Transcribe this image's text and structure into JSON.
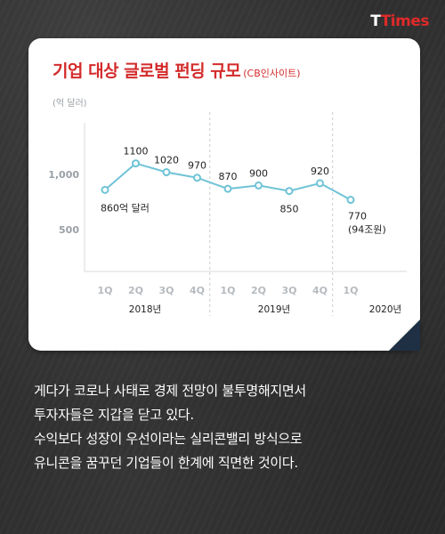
{
  "brand": {
    "logo_part1": "T",
    "logo_part2": "Times"
  },
  "card": {
    "title": "기업 대상 글로벌 펀딩 규모",
    "source": "(CB인사이트)",
    "unit": "(억 달러)"
  },
  "colors": {
    "accent": "#d42b2b",
    "line": "#6fc3d6",
    "axis_text": "#9aa0a6",
    "card_fold": "#1f3044"
  },
  "chart_data": {
    "type": "line",
    "title": "기업 대상 글로벌 펀딩 규모",
    "ylabel": "(억 달러)",
    "categories": [
      "1Q",
      "2Q",
      "3Q",
      "4Q",
      "1Q",
      "2Q",
      "3Q",
      "4Q",
      "1Q"
    ],
    "years": [
      {
        "label": "2018년",
        "quarters": 4
      },
      {
        "label": "2019년",
        "quarters": 4
      },
      {
        "label": "2020년",
        "quarters": 1
      }
    ],
    "values": [
      860,
      1100,
      1020,
      970,
      870,
      900,
      850,
      920,
      770
    ],
    "data_labels": [
      "860억 달러",
      "1100",
      "1020",
      "970",
      "870",
      "900",
      "850",
      "920",
      "770"
    ],
    "extra_label": {
      "index": 8,
      "text": "(94조원)"
    },
    "yticks": [
      {
        "value": 1000,
        "label": "1,000"
      },
      {
        "value": 500,
        "label": "500"
      }
    ],
    "ylim": [
      0,
      1400
    ],
    "grid": false
  },
  "body_lines": [
    "게다가 코로나 사태로 경제 전망이 불투명해지면서",
    "투자자들은 지갑을 닫고 있다.",
    "수익보다 성장이 우선이라는 실리콘밸리 방식으로",
    "유니콘을 꿈꾸던 기업들이 한계에 직면한 것이다."
  ]
}
